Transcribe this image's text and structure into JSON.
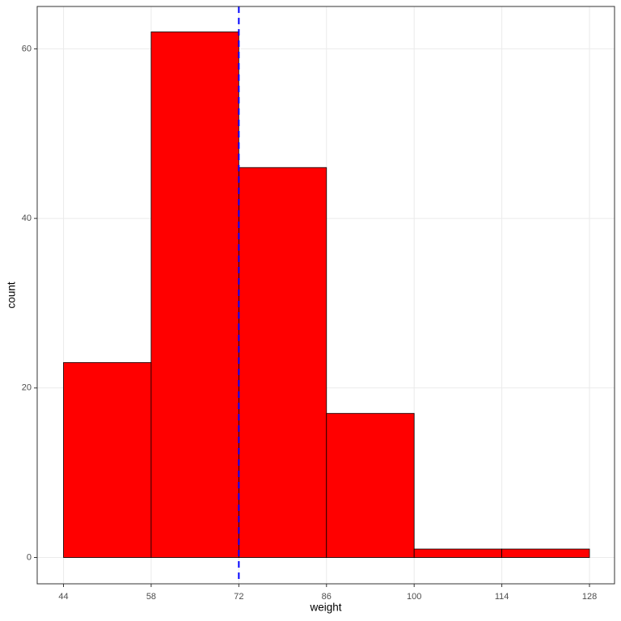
{
  "chart_data": {
    "type": "histogram",
    "bins": [
      44,
      58,
      72,
      86,
      100,
      114,
      128
    ],
    "counts": [
      23,
      62,
      46,
      17,
      1,
      1
    ],
    "color": "#ff0000",
    "edgecolor": "#000000",
    "xlabel": "weight",
    "ylabel": "count",
    "xlim": [
      39.8,
      132.0
    ],
    "ylim": [
      -3.1,
      65.0
    ],
    "xticks": [
      44,
      58,
      72,
      86,
      100,
      114,
      128
    ],
    "yticks": [
      0,
      20,
      40,
      60
    ],
    "grid": true,
    "vline": {
      "x": 72,
      "color": "#0000ff",
      "dashed": true
    }
  }
}
